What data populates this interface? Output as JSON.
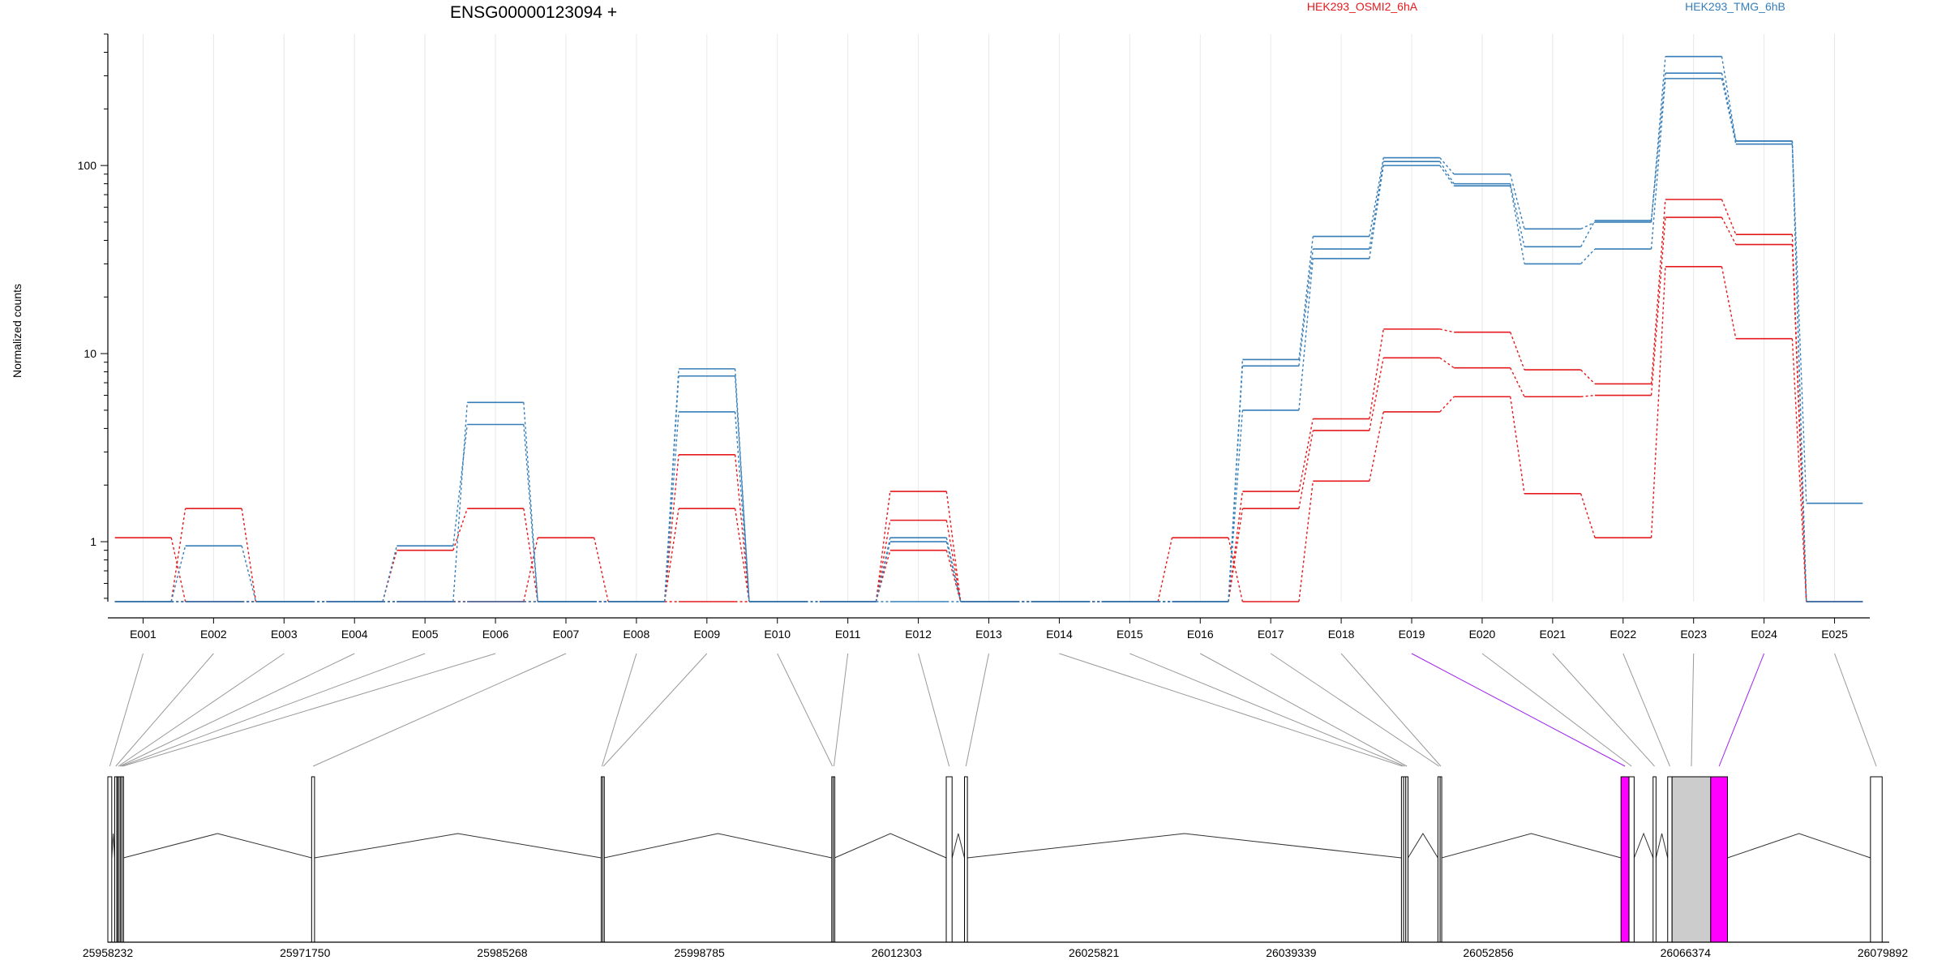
{
  "chart_data": [
    {
      "type": "line",
      "title": "ENSG00000123094 +",
      "ylabel": "Normalized counts",
      "xlabel": "",
      "yscale": "log",
      "ylim": [
        0.48,
        500
      ],
      "y_tick_labels": [
        "1",
        "10",
        "100"
      ],
      "grid": "vertical gridlines at exon centers",
      "legend_position": "top",
      "categories": [
        "E001",
        "E002",
        "E003",
        "E004",
        "E005",
        "E006",
        "E007",
        "E008",
        "E009",
        "E010",
        "E011",
        "E012",
        "E013",
        "E014",
        "E015",
        "E016",
        "E017",
        "E018",
        "E019",
        "E020",
        "E021",
        "E022",
        "E023",
        "E024",
        "E025"
      ],
      "colors": {
        "HEK293_OSMI2_6hA": "#e41a1c",
        "HEK293_TMG_6hB": "#377eb8"
      },
      "series": [
        {
          "name": "HEK293_OSMI2_6hA",
          "group": "HEK293_OSMI2_6hA",
          "values": [
            1.05,
            0.48,
            0.48,
            0.48,
            0.48,
            0.48,
            1.05,
            0.48,
            0.48,
            0.48,
            0.48,
            1.85,
            0.48,
            0.48,
            0.48,
            1.05,
            0.48,
            2.1,
            4.9,
            5.9,
            1.8,
            1.05,
            29,
            12,
            0.48
          ]
        },
        {
          "name": "",
          "group": "HEK293_OSMI2_6hA",
          "values": [
            0.48,
            1.5,
            0.48,
            0.48,
            0.9,
            1.5,
            0.48,
            0.48,
            1.5,
            0.48,
            0.48,
            1.3,
            0.48,
            0.48,
            0.48,
            0.48,
            1.5,
            3.9,
            9.5,
            8.4,
            5.9,
            6.0,
            53,
            38,
            0.48
          ]
        },
        {
          "name": "",
          "group": "HEK293_OSMI2_6hA",
          "values": [
            0.48,
            0.48,
            0.48,
            0.48,
            0.48,
            0.48,
            0.48,
            0.48,
            2.9,
            0.48,
            0.48,
            0.9,
            0.48,
            0.48,
            0.48,
            0.48,
            1.85,
            4.5,
            13.5,
            13,
            8.2,
            6.9,
            66,
            43,
            0.48
          ]
        },
        {
          "name": "HEK293_TMG_6hB",
          "group": "HEK293_TMG_6hB",
          "values": [
            0.48,
            0.95,
            0.48,
            0.48,
            0.95,
            4.2,
            0.48,
            0.48,
            4.9,
            0.48,
            0.48,
            1.05,
            0.48,
            0.48,
            0.48,
            0.48,
            5.0,
            32,
            100,
            78,
            30,
            36,
            290,
            130,
            1.6
          ]
        },
        {
          "name": "",
          "group": "HEK293_TMG_6hB",
          "values": [
            0.48,
            0.48,
            0.48,
            0.48,
            0.48,
            5.5,
            0.48,
            0.48,
            7.6,
            0.48,
            0.48,
            1.0,
            0.48,
            0.48,
            0.48,
            0.48,
            8.6,
            36,
            105,
            80,
            37,
            51,
            310,
            135,
            0.48
          ]
        },
        {
          "name": "",
          "group": "HEK293_TMG_6hB",
          "values": [
            0.48,
            0.48,
            0.48,
            0.48,
            0.48,
            0.48,
            0.48,
            0.48,
            8.3,
            0.48,
            0.48,
            0.48,
            0.48,
            0.48,
            0.48,
            0.48,
            9.3,
            42,
            110,
            90,
            46,
            50,
            380,
            135,
            0.48
          ]
        }
      ]
    },
    {
      "type": "gene-model",
      "x_tick_labels": [
        "25958232",
        "25971750",
        "25985268",
        "25998785",
        "26012303",
        "26025821",
        "26039339",
        "26052856",
        "26066374",
        "26079892"
      ],
      "x_ticks": [
        25958232,
        25971750,
        25985268,
        25998785,
        26012303,
        26025821,
        26039339,
        26052856,
        26066374,
        26079892
      ],
      "xlim": [
        25958232,
        26079892
      ],
      "highlight_color": "#ff00ff",
      "grey_exon_color": "#cccccc",
      "exons": [
        {
          "id": "E001",
          "start": 25958232,
          "end": 25958500,
          "fill": "white"
        },
        {
          "id": "E002",
          "start": 25958700,
          "end": 25958850,
          "fill": "white"
        },
        {
          "id": "E003",
          "start": 25958900,
          "end": 25959000,
          "fill": "white"
        },
        {
          "id": "E004",
          "start": 25959000,
          "end": 25959100,
          "fill": "white"
        },
        {
          "id": "E005",
          "start": 25959100,
          "end": 25959200,
          "fill": "white"
        },
        {
          "id": "E006",
          "start": 25959200,
          "end": 25959300,
          "fill": "white"
        },
        {
          "id": "E007",
          "start": 25972200,
          "end": 25972400,
          "fill": "white"
        },
        {
          "id": "E008",
          "start": 25992050,
          "end": 25992150,
          "fill": "white"
        },
        {
          "id": "E009",
          "start": 25992150,
          "end": 25992250,
          "fill": "white"
        },
        {
          "id": "E010",
          "start": 26007850,
          "end": 26007950,
          "fill": "white"
        },
        {
          "id": "E011",
          "start": 26007950,
          "end": 26008050,
          "fill": "white"
        },
        {
          "id": "E012",
          "start": 26015700,
          "end": 26016100,
          "fill": "white"
        },
        {
          "id": "E013",
          "start": 26016950,
          "end": 26017150,
          "fill": "white"
        },
        {
          "id": "E014",
          "start": 26046900,
          "end": 26047050,
          "fill": "white"
        },
        {
          "id": "E015",
          "start": 26047050,
          "end": 26047200,
          "fill": "white"
        },
        {
          "id": "E016",
          "start": 26047200,
          "end": 26047350,
          "fill": "white"
        },
        {
          "id": "E017",
          "start": 26049400,
          "end": 26049550,
          "fill": "white"
        },
        {
          "id": "E018",
          "start": 26049550,
          "end": 26049650,
          "fill": "white"
        },
        {
          "id": "E019",
          "start": 26061950,
          "end": 26062500,
          "fill": "magenta"
        },
        {
          "id": "E020",
          "start": 26062500,
          "end": 26062850,
          "fill": "white"
        },
        {
          "id": "E021",
          "start": 26064150,
          "end": 26064350,
          "fill": "white"
        },
        {
          "id": "E022",
          "start": 26065150,
          "end": 26065450,
          "fill": "white"
        },
        {
          "id": "E023",
          "start": 26065450,
          "end": 26068100,
          "fill": "grey"
        },
        {
          "id": "E024",
          "start": 26068100,
          "end": 26069250,
          "fill": "magenta"
        },
        {
          "id": "E025",
          "start": 26079050,
          "end": 26079850,
          "fill": "white"
        }
      ]
    }
  ],
  "legend": [
    {
      "label": "HEK293_OSMI2_6hA",
      "color": "#e41a1c"
    },
    {
      "label": "HEK293_TMG_6hB",
      "color": "#377eb8"
    }
  ]
}
